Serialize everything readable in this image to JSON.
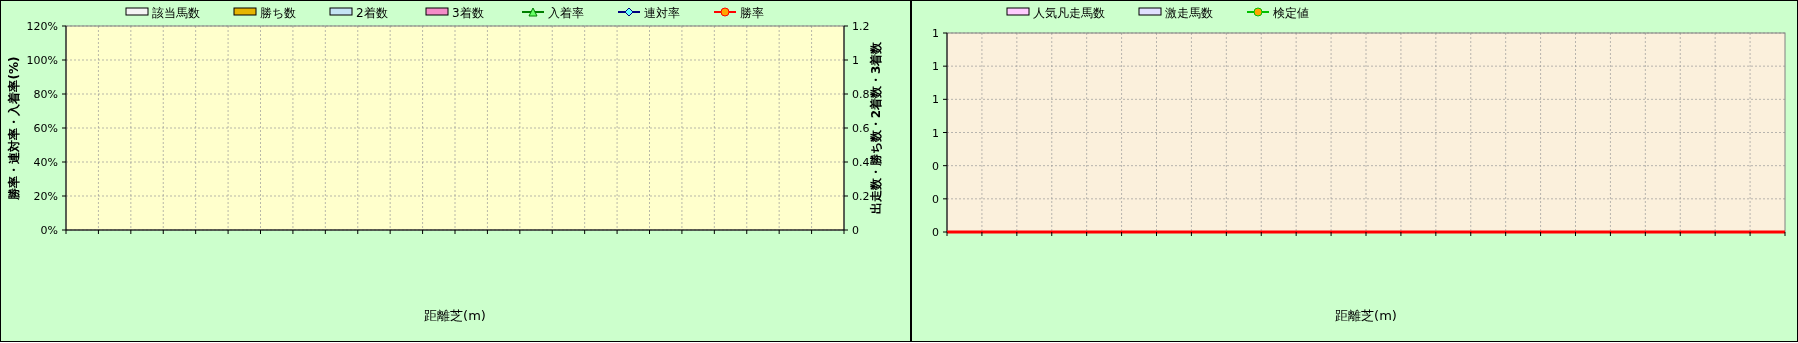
{
  "chart_data": [
    {
      "type": "bar",
      "xlabel": "距離芝(m)",
      "ylabel": "勝率・連対率・入着率(%)",
      "y2label": "出走数・勝ち数・2着数・3着数",
      "categories": [
        null,
        null,
        null,
        null,
        null,
        null,
        null,
        null,
        null,
        null,
        null,
        null,
        null,
        null,
        null,
        null,
        null,
        null,
        null,
        null,
        null,
        null,
        null,
        null
      ],
      "ylim": [
        0,
        1.2
      ],
      "yticks": [
        {
          "value": 0,
          "label": "0%"
        },
        {
          "value": 0.2,
          "label": "20%"
        },
        {
          "value": 0.4,
          "label": "40%"
        },
        {
          "value": 0.6,
          "label": "60%"
        },
        {
          "value": 0.8,
          "label": "80%"
        },
        {
          "value": 1,
          "label": "100%"
        },
        {
          "value": 1.2,
          "label": "120%"
        }
      ],
      "y2lim": [
        0,
        1.2
      ],
      "y2ticks": [
        0,
        0.2,
        0.4,
        0.6,
        0.8,
        1,
        1.2
      ],
      "grid": true,
      "legend": "top",
      "series": [
        {
          "name": "該当馬数",
          "color": "#f4f4f4",
          "values": [
            null,
            null,
            null,
            null,
            null,
            null,
            null,
            null,
            null,
            null,
            null,
            null,
            null,
            null,
            null,
            null,
            null,
            null,
            null,
            null,
            null,
            null,
            null,
            null
          ]
        },
        {
          "name": "勝ち数",
          "color": "#e6b400",
          "values": [
            null,
            null,
            null,
            null,
            null,
            null,
            null,
            null,
            null,
            null,
            null,
            null,
            null,
            null,
            null,
            null,
            null,
            null,
            null,
            null,
            null,
            null,
            null,
            null
          ]
        },
        {
          "name": "2着数",
          "color": "#c4e4f4",
          "values": [
            null,
            null,
            null,
            null,
            null,
            null,
            null,
            null,
            null,
            null,
            null,
            null,
            null,
            null,
            null,
            null,
            null,
            null,
            null,
            null,
            null,
            null,
            null,
            null
          ]
        },
        {
          "name": "3着数",
          "color": "#f48cc8",
          "values": [
            null,
            null,
            null,
            null,
            null,
            null,
            null,
            null,
            null,
            null,
            null,
            null,
            null,
            null,
            null,
            null,
            null,
            null,
            null,
            null,
            null,
            null,
            null,
            null
          ]
        },
        {
          "name": "入着率",
          "type": "line",
          "marker": "triangle",
          "color": "#008000",
          "values": [
            null,
            null,
            null,
            null,
            null,
            null,
            null,
            null,
            null,
            null,
            null,
            null,
            null,
            null,
            null,
            null,
            null,
            null,
            null,
            null,
            null,
            null,
            null,
            null
          ]
        },
        {
          "name": "連対率",
          "type": "line",
          "marker": "diamond",
          "color": "#000080",
          "values": [
            null,
            null,
            null,
            null,
            null,
            null,
            null,
            null,
            null,
            null,
            null,
            null,
            null,
            null,
            null,
            null,
            null,
            null,
            null,
            null,
            null,
            null,
            null,
            null
          ]
        },
        {
          "name": "勝率",
          "type": "line",
          "marker": "circle",
          "color": "#ff0000",
          "values": [
            null,
            null,
            null,
            null,
            null,
            null,
            null,
            null,
            null,
            null,
            null,
            null,
            null,
            null,
            null,
            null,
            null,
            null,
            null,
            null,
            null,
            null,
            null,
            null
          ]
        }
      ]
    },
    {
      "type": "bar",
      "xlabel": "距離芝(m)",
      "categories": [
        null,
        null,
        null,
        null,
        null,
        null,
        null,
        null,
        null,
        null,
        null,
        null,
        null,
        null,
        null,
        null,
        null,
        null,
        null,
        null,
        null,
        null,
        null,
        null
      ],
      "ylim": [
        0,
        1.2
      ],
      "yticks": [
        {
          "value": 0,
          "label": "0"
        },
        {
          "value": 0.2,
          "label": "0"
        },
        {
          "value": 0.4,
          "label": "0"
        },
        {
          "value": 0.6,
          "label": "1"
        },
        {
          "value": 0.8,
          "label": "1"
        },
        {
          "value": 1,
          "label": "1"
        },
        {
          "value": 1.2,
          "label": "1"
        }
      ],
      "grid": true,
      "legend": "top",
      "series": [
        {
          "name": "人気凡走馬数",
          "color": "#ffccff",
          "values": [
            null,
            null,
            null,
            null,
            null,
            null,
            null,
            null,
            null,
            null,
            null,
            null,
            null,
            null,
            null,
            null,
            null,
            null,
            null,
            null,
            null,
            null,
            null,
            null
          ]
        },
        {
          "name": "激走馬数",
          "color": "#e0e0ff",
          "values": [
            null,
            null,
            null,
            null,
            null,
            null,
            null,
            null,
            null,
            null,
            null,
            null,
            null,
            null,
            null,
            null,
            null,
            null,
            null,
            null,
            null,
            null,
            null,
            null
          ]
        },
        {
          "name": "検定値",
          "type": "line",
          "marker": "circle",
          "color": "#00c000",
          "values": [
            null,
            null,
            null,
            null,
            null,
            null,
            null,
            null,
            null,
            null,
            null,
            null,
            null,
            null,
            null,
            null,
            null,
            null,
            null,
            null,
            null,
            null,
            null,
            null
          ]
        }
      ]
    }
  ]
}
